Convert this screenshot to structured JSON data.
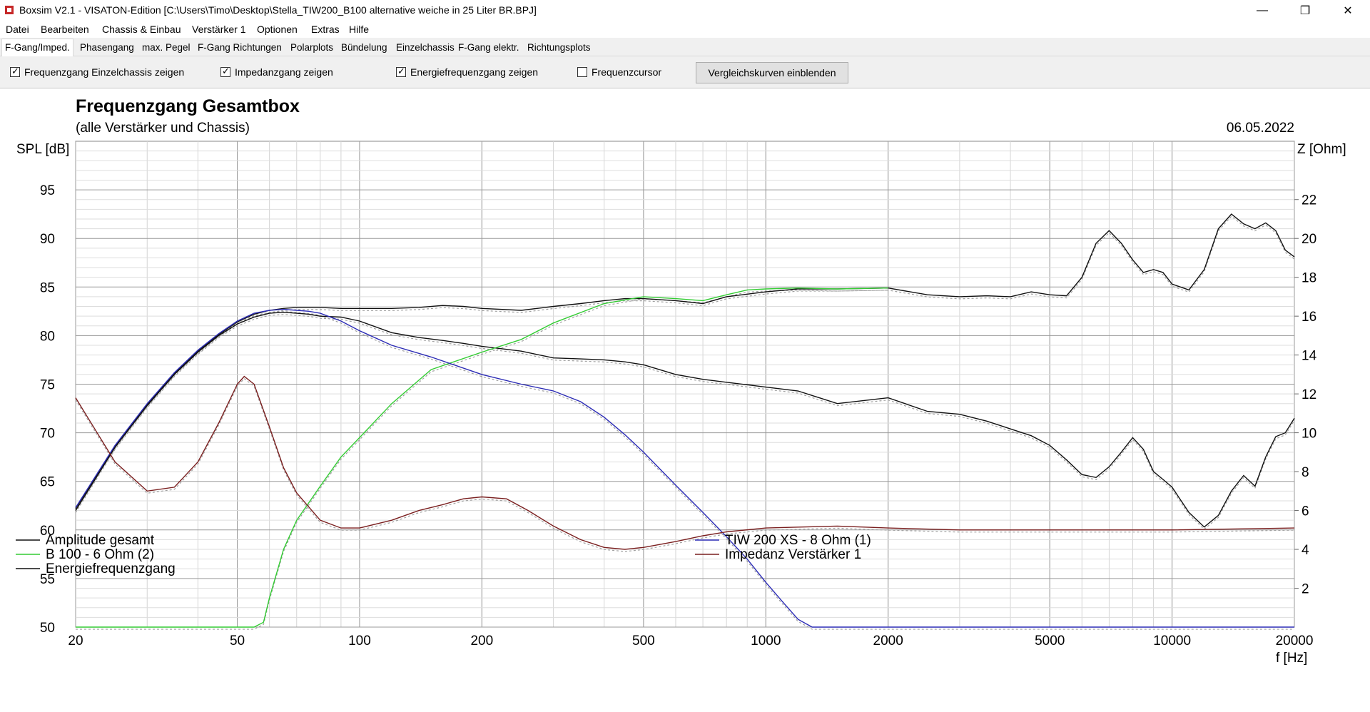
{
  "window": {
    "title": "Boxsim V2.1 - VISATON-Edition [C:\\Users\\Timo\\Desktop\\Stella_TIW200_B100 alternative weiche in 25 Liter BR.BPJ]",
    "minimize_glyph": "—",
    "maximize_glyph": "❐",
    "close_glyph": "✕"
  },
  "menu": [
    "Datei",
    "Bearbeiten",
    "Chassis & Einbau",
    "Verstärker 1",
    "Optionen",
    "Extras",
    "Hilfe"
  ],
  "tabs": [
    "F-Gang/Imped.",
    "Phasengang",
    "max. Pegel",
    "F-Gang Richtungen",
    "Polarplots",
    "Bündelung",
    "Einzelchassis",
    "F-Gang elektr.",
    "Richtungsplots"
  ],
  "active_tab": 0,
  "options": {
    "cb1": {
      "label": "Frequenzgang Einzelchassis zeigen",
      "checked": true
    },
    "cb2": {
      "label": "Impedanzgang zeigen",
      "checked": true
    },
    "cb3": {
      "label": "Energiefrequenzgang zeigen",
      "checked": true
    },
    "cb4": {
      "label": "Frequenzcursor",
      "checked": false
    },
    "compare_button": "Vergleichskurven einblenden"
  },
  "colors": {
    "black": "#111111",
    "green": "#33cc33",
    "blue": "#2b2bb5",
    "darkred": "#7a1f1f",
    "grid": "#bdbdbd"
  },
  "chart_data": {
    "type": "line",
    "title": "Frequenzgang Gesamtbox",
    "subtitle": "(alle Verstärker und Chassis)",
    "date": "06.05.2022",
    "ylabel_left": "SPL [dB]",
    "ylabel_right": "Z [Ohm]",
    "xlabel": "f [Hz]",
    "x_scale": "log",
    "xlim": [
      20,
      20000
    ],
    "ylim_left": [
      50,
      100
    ],
    "ylim_right": [
      0,
      25
    ],
    "x_ticks": [
      20,
      50,
      100,
      200,
      500,
      1000,
      2000,
      5000,
      10000,
      20000
    ],
    "y_ticks_left": [
      50,
      55,
      60,
      65,
      70,
      75,
      80,
      85,
      90,
      95
    ],
    "y_ticks_right": [
      2,
      4,
      6,
      8,
      10,
      12,
      14,
      16,
      18,
      20,
      22
    ],
    "grid": true,
    "legend": [
      {
        "name": "Amplitude gesamt",
        "color": "black"
      },
      {
        "name": "B 100 - 6 Ohm (2)",
        "color": "green"
      },
      {
        "name": "Energiefrequenzgang",
        "color": "black"
      },
      {
        "name": "TIW 200 XS - 8 Ohm (1)",
        "color": "blue"
      },
      {
        "name": "Impedanz Verstärker 1",
        "color": "darkred"
      }
    ],
    "series": [
      {
        "name": "Amplitude gesamt",
        "color": "black",
        "axis": "left",
        "x": [
          20,
          25,
          30,
          35,
          40,
          45,
          50,
          55,
          60,
          65,
          70,
          75,
          80,
          90,
          100,
          120,
          140,
          160,
          180,
          200,
          250,
          300,
          350,
          400,
          450,
          500,
          600,
          700,
          800,
          1000,
          1200,
          1500,
          2000,
          2500,
          3000,
          3500,
          4000,
          4500,
          5000,
          5500,
          6000,
          6500,
          7000,
          7500,
          8000,
          8500,
          9000,
          9500,
          10000,
          11000,
          12000,
          13000,
          14000,
          15000,
          16000,
          17000,
          18000,
          19000,
          20000
        ],
        "y": [
          62.2,
          68.6,
          72.9,
          76.1,
          78.4,
          80.1,
          81.4,
          82.2,
          82.6,
          82.8,
          82.9,
          82.9,
          82.9,
          82.8,
          82.8,
          82.8,
          82.9,
          83.1,
          83.0,
          82.8,
          82.6,
          83.0,
          83.3,
          83.6,
          83.8,
          83.8,
          83.6,
          83.3,
          84.0,
          84.5,
          84.8,
          84.8,
          84.9,
          84.2,
          84.0,
          84.1,
          84.0,
          84.5,
          84.2,
          84.1,
          86.0,
          89.5,
          90.8,
          89.5,
          87.8,
          86.5,
          86.8,
          86.5,
          85.3,
          84.7,
          86.8,
          91.0,
          92.5,
          91.5,
          91.0,
          91.6,
          90.8,
          88.8,
          88.1
        ]
      },
      {
        "name": "Energiefrequenzgang",
        "color": "black",
        "axis": "left",
        "x": [
          20,
          25,
          30,
          35,
          40,
          45,
          50,
          55,
          60,
          65,
          70,
          75,
          80,
          90,
          100,
          120,
          140,
          160,
          180,
          200,
          250,
          300,
          350,
          400,
          450,
          500,
          600,
          700,
          800,
          1000,
          1200,
          1500,
          2000,
          2500,
          3000,
          3500,
          4000,
          4500,
          5000,
          5500,
          6000,
          6500,
          7000,
          7500,
          8000,
          8500,
          9000,
          9500,
          10000,
          11000,
          12000,
          13000,
          14000,
          15000,
          16000,
          17000,
          18000,
          19000,
          20000
        ],
        "y": [
          62.0,
          68.5,
          72.8,
          76.0,
          78.3,
          80.0,
          81.2,
          81.9,
          82.3,
          82.4,
          82.3,
          82.2,
          82.0,
          81.9,
          81.5,
          80.3,
          79.8,
          79.5,
          79.2,
          78.9,
          78.4,
          77.7,
          77.6,
          77.5,
          77.3,
          77.0,
          76.0,
          75.5,
          75.2,
          74.7,
          74.3,
          73.0,
          73.6,
          72.2,
          71.9,
          71.2,
          70.4,
          69.7,
          68.7,
          67.2,
          65.7,
          65.4,
          66.5,
          68.0,
          69.5,
          68.3,
          66.0,
          65.2,
          64.4,
          61.8,
          60.3,
          61.5,
          64.0,
          65.6,
          64.5,
          67.5,
          69.6,
          70.0,
          71.5
        ]
      },
      {
        "name": "B 100 - 6 Ohm (2)",
        "color": "green",
        "axis": "left",
        "x": [
          20,
          40,
          55,
          58,
          60,
          65,
          70,
          80,
          90,
          100,
          120,
          150,
          200,
          250,
          300,
          400,
          500,
          600,
          700,
          800,
          900,
          1000,
          1200,
          1500,
          2000
        ],
        "y": [
          50,
          50,
          50,
          50.5,
          53,
          58,
          61,
          64.5,
          67.5,
          69.5,
          73,
          76.5,
          78.3,
          79.6,
          81.3,
          83.3,
          84.0,
          83.8,
          83.6,
          84.2,
          84.7,
          84.8,
          84.9,
          84.8,
          84.9
        ]
      },
      {
        "name": "TIW 200 XS - 8 Ohm (1)",
        "color": "blue",
        "axis": "left",
        "x": [
          20,
          25,
          30,
          35,
          40,
          45,
          50,
          55,
          60,
          65,
          70,
          75,
          80,
          90,
          100,
          120,
          150,
          200,
          250,
          300,
          350,
          400,
          450,
          500,
          600,
          700,
          800,
          900,
          1000,
          1100,
          1200,
          1300,
          1400,
          20000
        ],
        "y": [
          62.3,
          68.7,
          73.0,
          76.2,
          78.5,
          80.2,
          81.5,
          82.3,
          82.6,
          82.7,
          82.6,
          82.5,
          82.3,
          81.5,
          80.5,
          79.0,
          77.8,
          76.0,
          75.0,
          74.3,
          73.2,
          71.6,
          69.8,
          68.0,
          64.6,
          61.8,
          59.3,
          57.0,
          54.6,
          52.6,
          50.8,
          50.0,
          50.0,
          50.0
        ]
      },
      {
        "name": "Impedanz Verstärker 1",
        "color": "darkred",
        "axis": "right",
        "x": [
          20,
          25,
          30,
          35,
          40,
          45,
          50,
          52,
          55,
          60,
          65,
          70,
          80,
          90,
          100,
          120,
          140,
          160,
          180,
          200,
          230,
          260,
          300,
          350,
          400,
          450,
          500,
          600,
          700,
          800,
          1000,
          1500,
          2000,
          3000,
          5000,
          10000,
          20000
        ],
        "y": [
          11.8,
          8.5,
          7.0,
          7.2,
          8.5,
          10.5,
          12.5,
          12.9,
          12.5,
          10.3,
          8.2,
          6.9,
          5.5,
          5.1,
          5.1,
          5.5,
          6.0,
          6.3,
          6.6,
          6.7,
          6.6,
          6.0,
          5.2,
          4.5,
          4.1,
          4.0,
          4.1,
          4.4,
          4.7,
          4.9,
          5.1,
          5.2,
          5.1,
          5.0,
          5.0,
          5.0,
          5.1
        ]
      }
    ]
  }
}
